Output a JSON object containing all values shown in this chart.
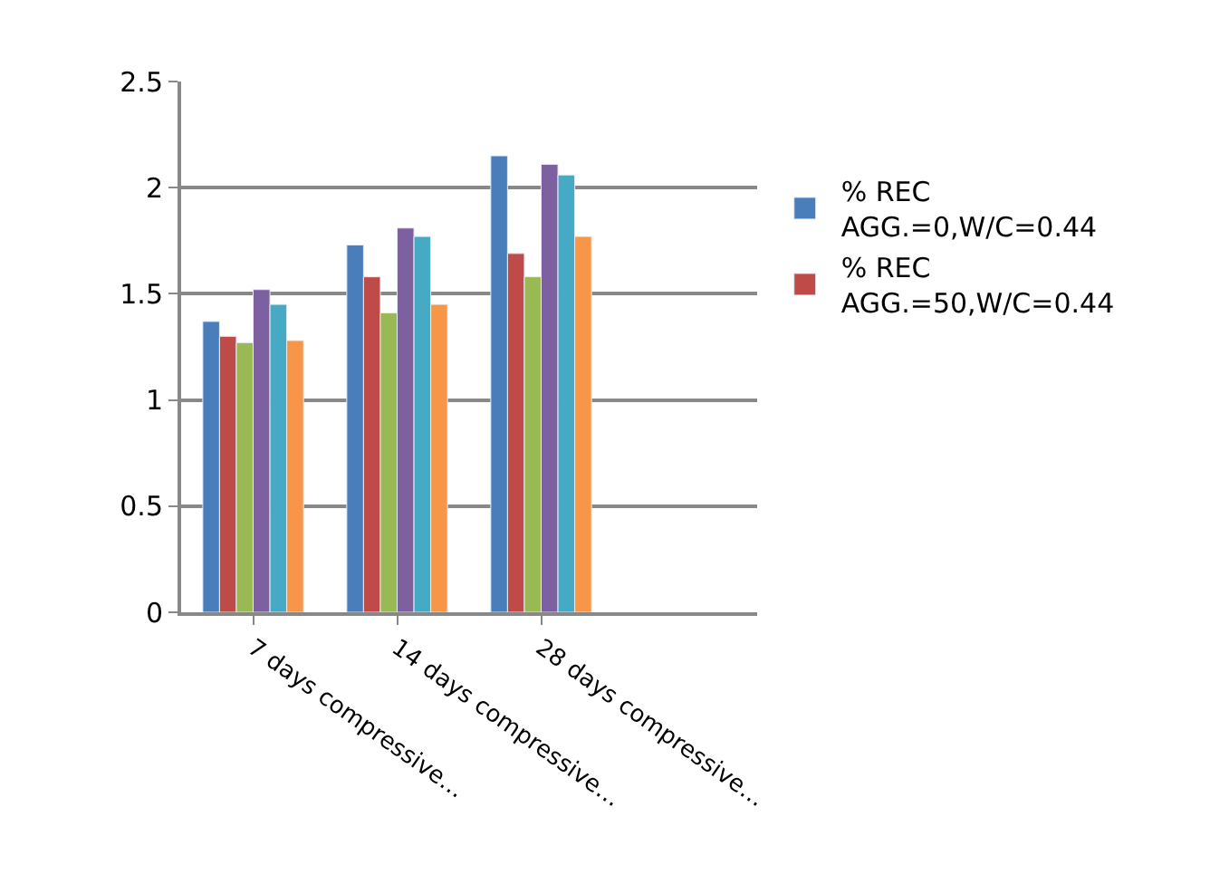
{
  "chart_data": {
    "type": "bar",
    "categories": [
      "7 days compressive…",
      "14 days compressive…",
      "28 days compressive…",
      null
    ],
    "series": [
      {
        "name": "% REC\nAGG.=0,W/C=0.44",
        "color": "#4a7ebb",
        "values": [
          1.37,
          1.73,
          2.15,
          null
        ]
      },
      {
        "name": "% REC\nAGG.=50,W/C=0.44",
        "color": "#be4b48",
        "values": [
          1.3,
          1.58,
          1.69,
          null
        ]
      },
      {
        "color": "#98b954",
        "values": [
          1.27,
          1.41,
          1.58,
          null
        ]
      },
      {
        "color": "#7d60a0",
        "values": [
          1.52,
          1.81,
          2.11,
          null
        ]
      },
      {
        "color": "#46aac5",
        "values": [
          1.45,
          1.77,
          2.06,
          null
        ]
      },
      {
        "color": "#f79646",
        "values": [
          1.28,
          1.45,
          1.77,
          null
        ]
      }
    ],
    "ylim": [
      0,
      2.5
    ],
    "yticks": [
      0,
      0.5,
      1,
      1.5,
      2,
      2.5
    ],
    "grid": "y",
    "legend": "right"
  }
}
